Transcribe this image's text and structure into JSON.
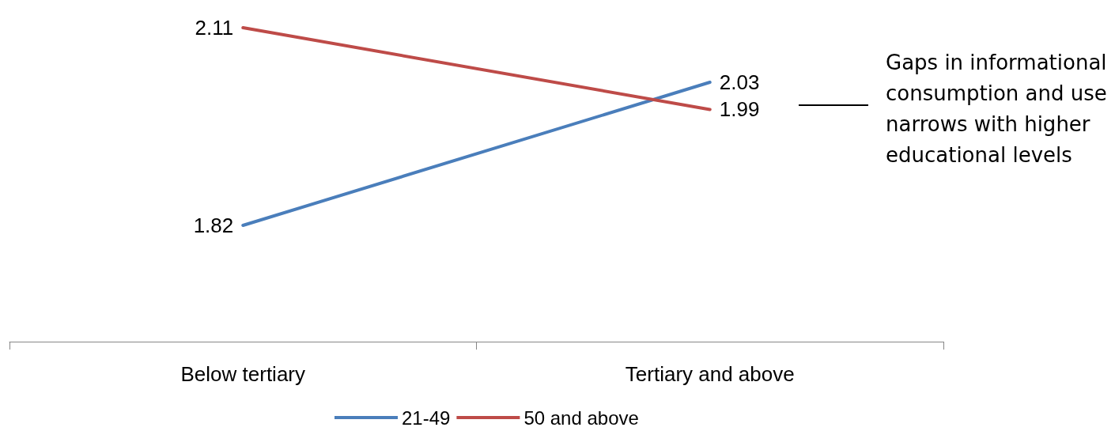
{
  "chart_data": {
    "type": "line",
    "categories": [
      "Below tertiary",
      "Tertiary and above"
    ],
    "series": [
      {
        "name": "21-49",
        "color": "#4a7ebb",
        "values": [
          1.82,
          2.03
        ]
      },
      {
        "name": "50 and above",
        "color": "#be4b48",
        "values": [
          2.11,
          1.99
        ]
      }
    ],
    "data_labels": true,
    "marker": "none",
    "line_style": "solid",
    "grid": false,
    "legend": "bottom",
    "tick_labels": "x",
    "annotations": [
      "Gaps in informational consumption and use narrows with higher educational levels"
    ]
  }
}
